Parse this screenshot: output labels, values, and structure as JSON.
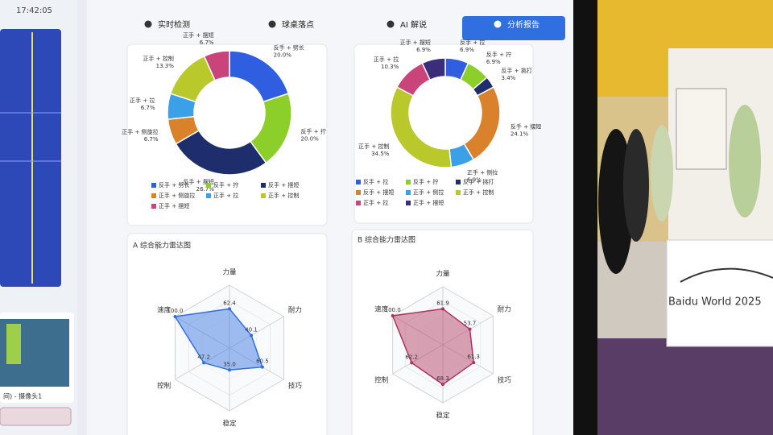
{
  "header": {
    "time": "17:42:05",
    "tabs": [
      "实时检测",
      "球桌落点",
      "AI 解说",
      "分析报告"
    ]
  },
  "camera_label": "间) - 摄像头1",
  "venue_sign": "Baidu World 2025",
  "chart_data": [
    {
      "type": "donut",
      "categories": [
        "反手 + 劈长",
        "反手 + 拧",
        "反手 + 摆短",
        "正手 + 侧旋拉",
        "正手 + 拉",
        "正手 + 控制",
        "正手 + 摆短"
      ],
      "values": [
        20.0,
        20.0,
        26.7,
        6.7,
        6.7,
        13.3,
        6.7
      ],
      "value_labels": [
        "20.0%",
        "20.0%",
        "26.7%",
        "6.7%",
        "6.7%",
        "13.3%",
        "6.7%"
      ],
      "colors": [
        "#2f5fe0",
        "#8ccf2a",
        "#1e2d6b",
        "#d9822b",
        "#3aa0e8",
        "#b9c82a",
        "#c8447a"
      ]
    },
    {
      "type": "donut",
      "categories": [
        "反手 + 拉",
        "反手 + 拧",
        "反手 + 挑打",
        "反手 + 摆短",
        "正手 + 侧拉",
        "正手 + 控制",
        "正手 + 拉",
        "正手 + 摆短"
      ],
      "values": [
        6.9,
        6.9,
        3.4,
        24.1,
        6.9,
        34.5,
        10.3,
        6.9
      ],
      "value_labels": [
        "6.9%",
        "6.9%",
        "3.4%",
        "24.1%",
        "6.9%",
        "34.5%",
        "10.3%",
        "6.9%"
      ],
      "colors": [
        "#2f5fe0",
        "#8ccf2a",
        "#1e2d6b",
        "#d9822b",
        "#3aa0e8",
        "#b9c82a",
        "#c8447a",
        "#3a2d7a"
      ]
    },
    {
      "type": "radar",
      "title": "A 综合能力雷达图",
      "categories": [
        "力量",
        "耐力",
        "技巧",
        "稳定",
        "控制",
        "速度"
      ],
      "values": [
        62.4,
        40.1,
        60.5,
        35.0,
        47.2,
        100.0
      ],
      "value_labels": [
        "62.4",
        "40.1",
        "60.5",
        "35.0",
        "47.2",
        "100.0"
      ],
      "rlim": [
        0,
        100
      ],
      "rticks": [
        25,
        50,
        75,
        100
      ],
      "color": "#2f6fe0"
    },
    {
      "type": "radar",
      "title": "B 综合能力雷达图",
      "categories": [
        "力量",
        "耐力",
        "技巧",
        "稳定",
        "控制",
        "速度"
      ],
      "values": [
        61.9,
        53.7,
        61.3,
        68.3,
        62.2,
        100.0
      ],
      "value_labels": [
        "61.9",
        "53.7",
        "61.3",
        "68.3",
        "62.2",
        "100.0"
      ],
      "rlim": [
        0,
        100
      ],
      "rticks": [
        25,
        50,
        75,
        100
      ],
      "color": "#b0335a"
    }
  ]
}
